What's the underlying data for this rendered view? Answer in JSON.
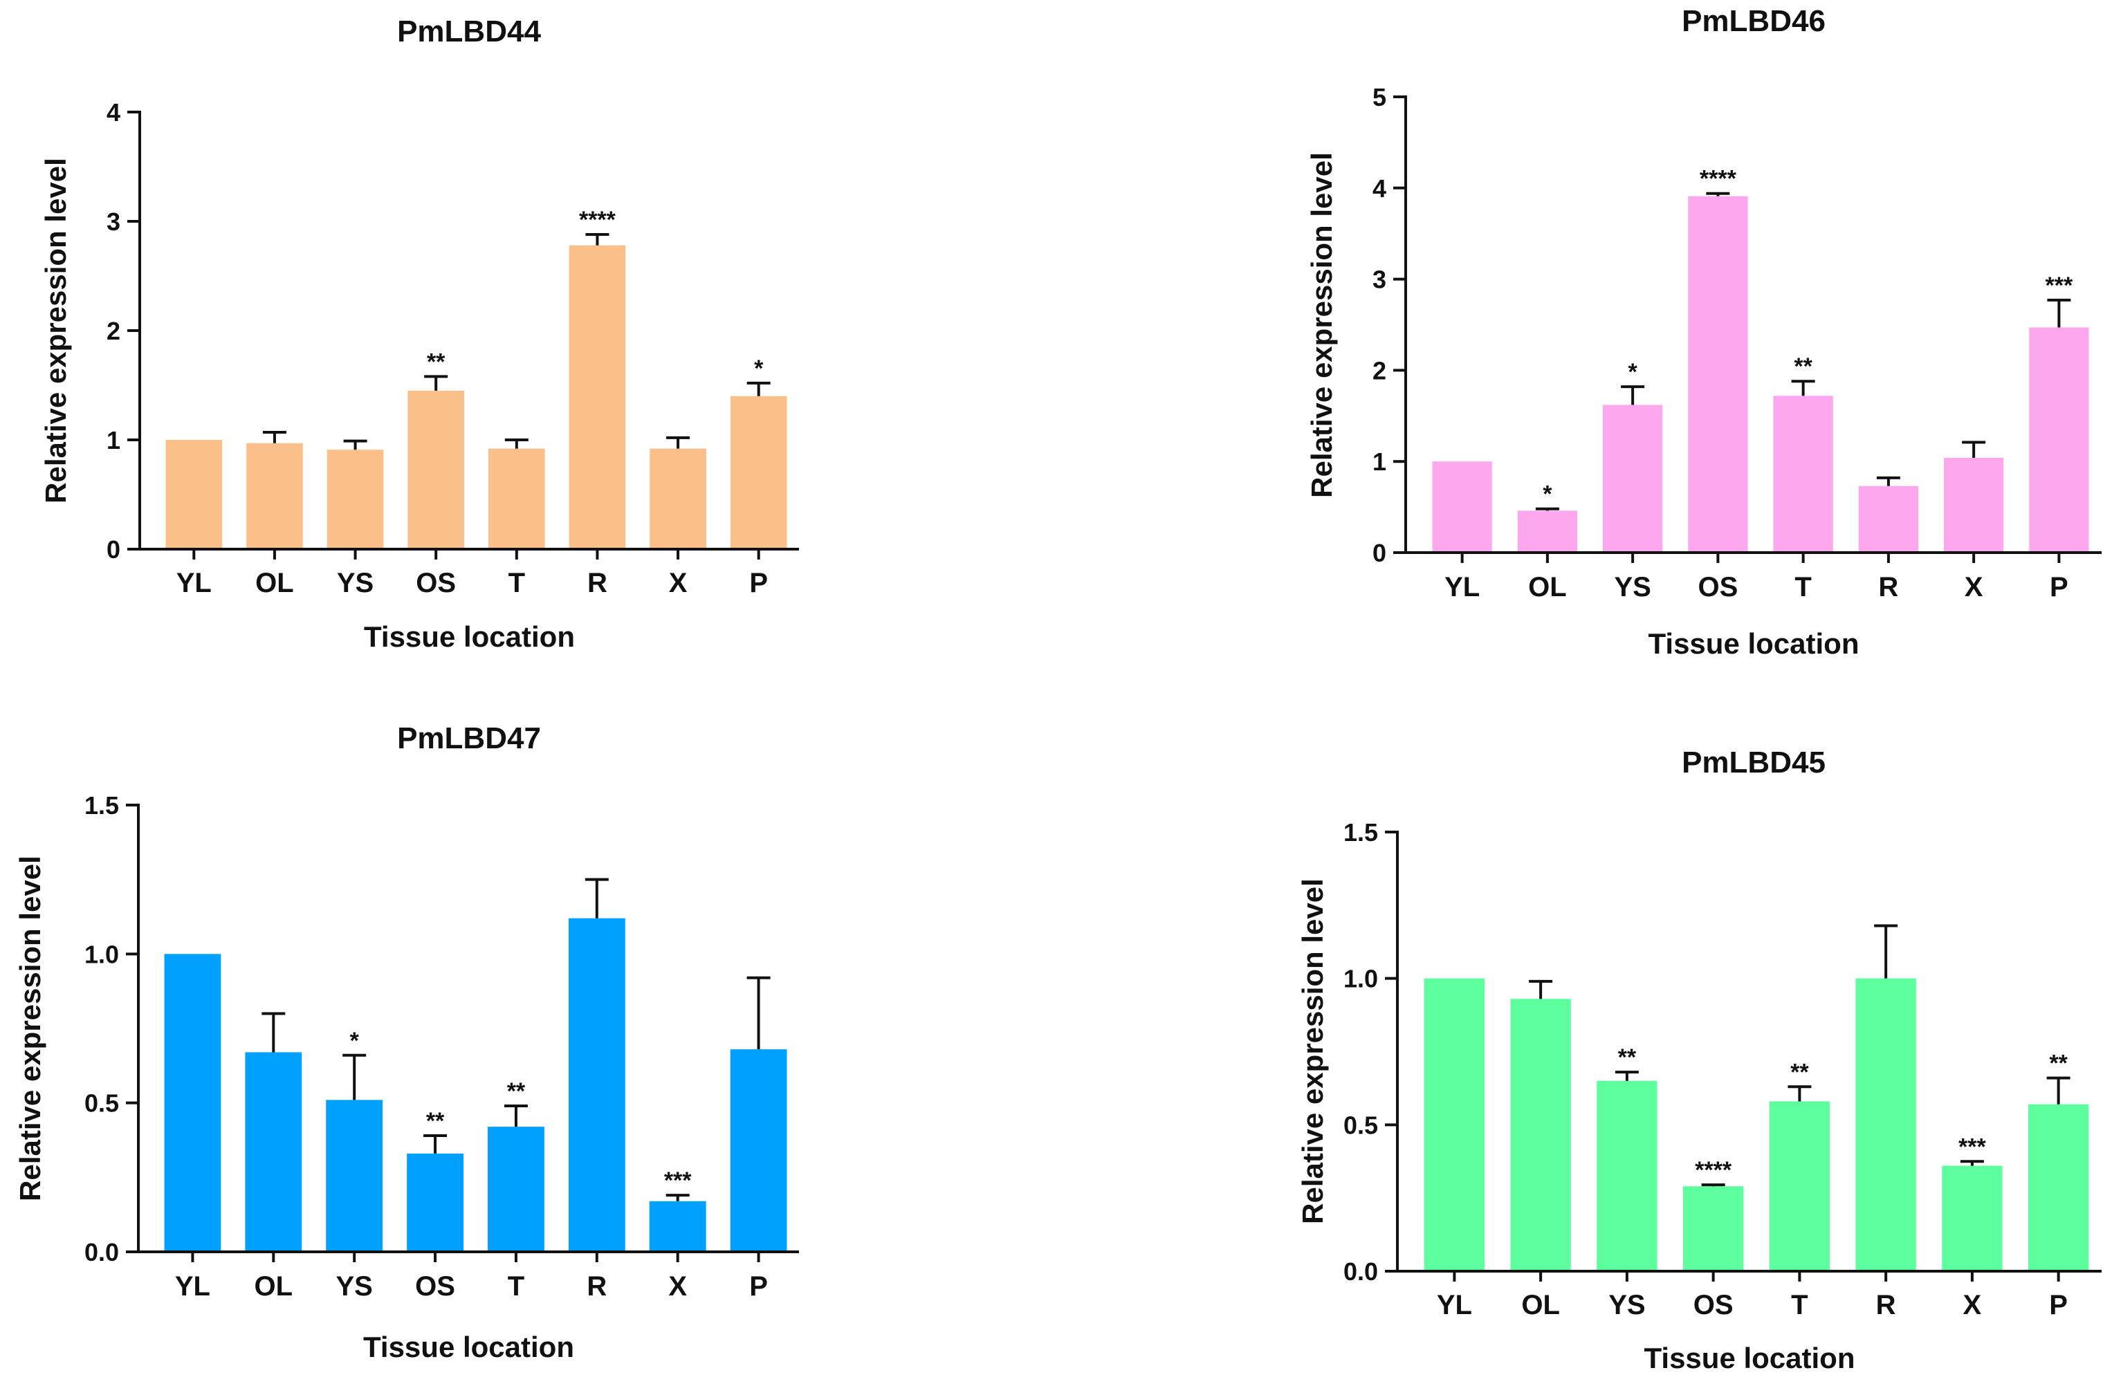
{
  "charts": [
    {
      "type": "bar",
      "title": "PmLBD44",
      "xlabel": "Tissue location",
      "ylabel": "Relative expression level",
      "categories": [
        "YL",
        "OL",
        "YS",
        "OS",
        "T",
        "R",
        "X",
        "P"
      ],
      "values": [
        1.0,
        0.97,
        0.91,
        1.45,
        0.92,
        2.78,
        0.92,
        1.4
      ],
      "errors": [
        0.0,
        0.1,
        0.08,
        0.13,
        0.08,
        0.1,
        0.1,
        0.12
      ],
      "significance": [
        "",
        "",
        "",
        "**",
        "",
        "****",
        "",
        "*"
      ],
      "ylim": [
        0,
        4
      ],
      "yticks": [
        "0",
        "1",
        "2",
        "3",
        "4"
      ],
      "color": "#FBBF8A"
    },
    {
      "type": "bar",
      "title": "PmLBD46",
      "xlabel": "Tissue location",
      "ylabel": "Relative expression level",
      "categories": [
        "YL",
        "OL",
        "YS",
        "OS",
        "T",
        "R",
        "X",
        "P"
      ],
      "values": [
        1.0,
        0.46,
        1.62,
        3.91,
        1.72,
        0.73,
        1.04,
        2.47
      ],
      "errors": [
        0.0,
        0.02,
        0.2,
        0.03,
        0.16,
        0.09,
        0.17,
        0.3
      ],
      "significance": [
        "",
        "*",
        "*",
        "****",
        "**",
        "",
        "",
        "***"
      ],
      "ylim": [
        0,
        5
      ],
      "yticks": [
        "0",
        "1",
        "2",
        "3",
        "4",
        "5"
      ],
      "color": "#FDA8EE"
    },
    {
      "type": "bar",
      "title": "PmLBD47",
      "xlabel": "Tissue location",
      "ylabel": "Relative expression level",
      "categories": [
        "YL",
        "OL",
        "YS",
        "OS",
        "T",
        "R",
        "X",
        "P"
      ],
      "values": [
        1.0,
        0.67,
        0.51,
        0.33,
        0.42,
        1.12,
        0.17,
        0.68
      ],
      "errors": [
        0.0,
        0.13,
        0.15,
        0.06,
        0.07,
        0.13,
        0.02,
        0.24
      ],
      "significance": [
        "",
        "",
        "*",
        "**",
        "**",
        "",
        "***",
        ""
      ],
      "ylim": [
        0,
        1.5
      ],
      "yticks": [
        "0.0",
        "0.5",
        "1.0",
        "1.5"
      ],
      "color": "#00A0FF"
    },
    {
      "type": "bar",
      "title": "PmLBD45",
      "xlabel": "Tissue location",
      "ylabel": "Relative expression level",
      "categories": [
        "YL",
        "OL",
        "YS",
        "OS",
        "T",
        "R",
        "X",
        "P"
      ],
      "values": [
        1.0,
        0.93,
        0.65,
        0.29,
        0.58,
        1.0,
        0.36,
        0.57
      ],
      "errors": [
        0.0,
        0.06,
        0.03,
        0.005,
        0.05,
        0.18,
        0.015,
        0.09
      ],
      "significance": [
        "",
        "",
        "**",
        "****",
        "**",
        "",
        "***",
        "**"
      ],
      "ylim": [
        0,
        1.5
      ],
      "yticks": [
        "0.0",
        "0.5",
        "1.0",
        "1.5"
      ],
      "color": "#5CFE9D"
    }
  ]
}
